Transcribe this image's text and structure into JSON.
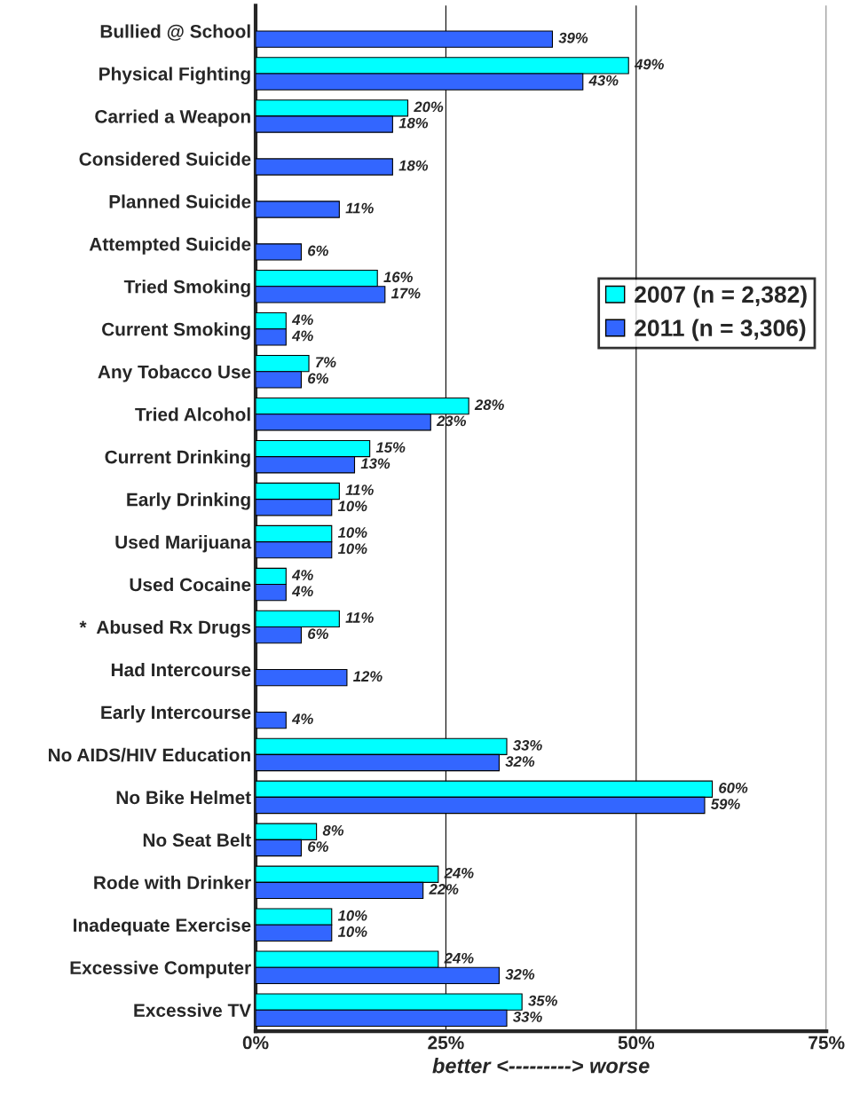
{
  "chart_data": {
    "type": "bar",
    "orientation": "horizontal",
    "xlabel": "better <---------> worse",
    "categories": [
      "Bullied @ School",
      "Physical Fighting",
      "Carried a Weapon",
      "Considered Suicide",
      "Planned Suicide",
      "Attempted Suicide",
      "Tried Smoking",
      "Current Smoking",
      "Any Tobacco Use",
      "Tried Alcohol",
      "Current Drinking",
      "Early Drinking",
      "Used Marijuana",
      "Used Cocaine",
      "*  Abused Rx Drugs",
      "Had Intercourse",
      "Early Intercourse",
      "No AIDS/HIV Education",
      "No Bike Helmet",
      "No Seat Belt",
      "Rode with Drinker",
      "Inadequate Exercise",
      "Excessive Computer",
      "Excessive TV"
    ],
    "series": [
      {
        "name": "2007 (n = 2,382)",
        "color": "#00ffff",
        "values": [
          null,
          49,
          20,
          null,
          null,
          null,
          16,
          4,
          7,
          28,
          15,
          11,
          10,
          4,
          11,
          null,
          null,
          33,
          60,
          8,
          24,
          10,
          24,
          35
        ],
        "value_labels": [
          null,
          "49%",
          "20%",
          null,
          null,
          null,
          "16%",
          "4%",
          "7%",
          "28%",
          "15%",
          "11%",
          "10%",
          "4%",
          "11%",
          null,
          null,
          "33%",
          "60%",
          "8%",
          "24%",
          "10%",
          "24%",
          "35%"
        ]
      },
      {
        "name": "2011 (n = 3,306)",
        "color": "#3366ff",
        "values": [
          39,
          43,
          18,
          18,
          11,
          6,
          17,
          4,
          6,
          23,
          13,
          10,
          10,
          4,
          6,
          12,
          4,
          32,
          59,
          6,
          22,
          10,
          32,
          33
        ],
        "value_labels": [
          "39%",
          "43%",
          "18%",
          "18%",
          "11%",
          "6%",
          "17%",
          "4%",
          "6%",
          "23%",
          "13%",
          "10%",
          "10%",
          "4%",
          "6%",
          "12%",
          "4%",
          "32%",
          "59%",
          "6%",
          "22%",
          "10%",
          "32%",
          "33%"
        ]
      }
    ],
    "xlim": [
      0,
      75
    ],
    "xticks": [
      {
        "value": 0,
        "label": "0%"
      },
      {
        "value": 25,
        "label": "25%"
      },
      {
        "value": 50,
        "label": "50%"
      },
      {
        "value": 75,
        "label": "75%"
      }
    ],
    "grid": "x",
    "legend": "right"
  }
}
